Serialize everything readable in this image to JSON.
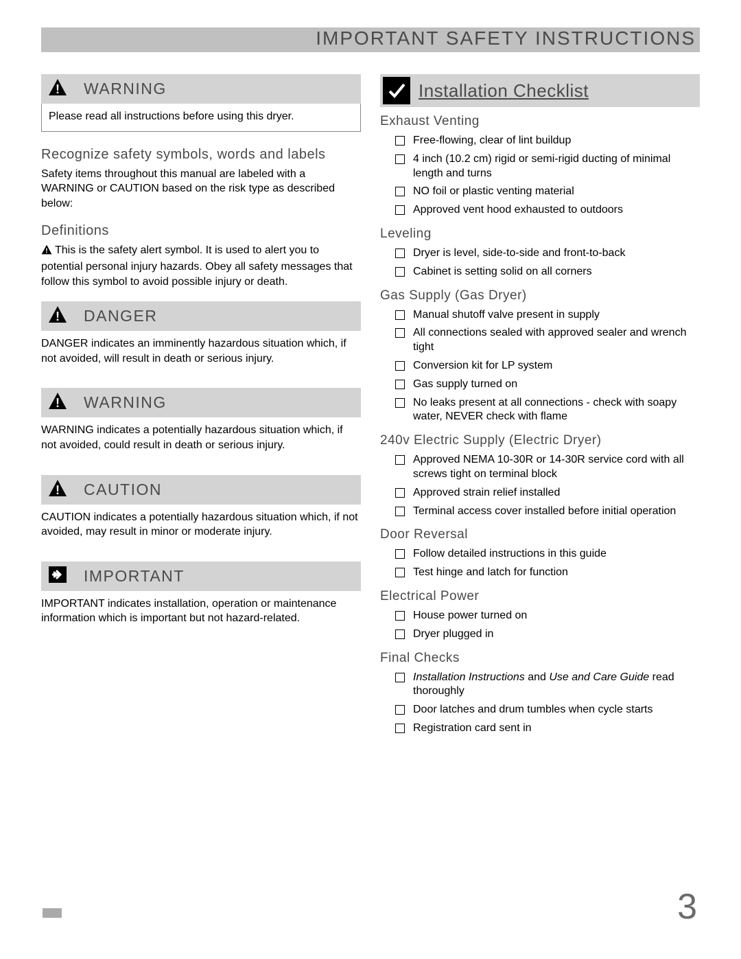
{
  "page_title": "IMPORTANT SAFETY INSTRUCTIONS",
  "page_number": "3",
  "colors": {
    "band": "#c0c0c0",
    "alert_bg": "#d3d3d3",
    "heading_text": "#4a4a4a",
    "body_text": "#000000",
    "icon_black": "#000000",
    "icon_white": "#ffffff"
  },
  "left": {
    "alerts": [
      {
        "icon": "warning-triangle",
        "title": "WARNING",
        "text": "Please read all instructions before using this dryer.",
        "boxed": true
      }
    ],
    "recognize_heading": "Recognize safety symbols, words and labels",
    "recognize_text": "Safety items throughout this manual are labeled with a WARNING or CAUTION based on the risk type as described below:",
    "definitions_heading": "Definitions",
    "definitions_text": "This is the safety alert symbol. It is used to alert you to potential personal injury hazards. Obey all safety messages that follow this symbol to avoid possible injury or death.",
    "alert_blocks": [
      {
        "icon": "warning-triangle",
        "title": "DANGER",
        "text": "DANGER indicates an imminently hazardous situation which, if not avoided, will result in death or serious injury."
      },
      {
        "icon": "warning-triangle",
        "title": "WARNING",
        "text": "WARNING indicates a potentially hazardous situation which, if not avoided, could result in death or serious injury."
      },
      {
        "icon": "warning-triangle",
        "title": "CAUTION",
        "text": "CAUTION indicates a potentially hazardous situation which, if not avoided, may result in minor or moderate injury."
      },
      {
        "icon": "arrow-right",
        "title": "IMPORTANT",
        "text": "IMPORTANT indicates installation, operation or maintenance information which is important but not hazard-related."
      }
    ]
  },
  "right": {
    "checklist_title": "Installation Checklist",
    "sections": [
      {
        "heading": "Exhaust Venting",
        "items": [
          "Free-flowing, clear of lint buildup",
          "4 inch (10.2 cm) rigid or semi-rigid ducting of minimal length and turns",
          "NO foil or plastic venting material",
          "Approved vent hood exhausted to outdoors"
        ]
      },
      {
        "heading": "Leveling",
        "items": [
          "Dryer is level, side-to-side and front-to-back",
          "Cabinet is setting solid on all corners"
        ]
      },
      {
        "heading": "Gas Supply (Gas Dryer)",
        "items": [
          "Manual shutoff valve present in supply",
          "All connections sealed with approved sealer and wrench tight",
          "Conversion kit for LP system",
          "Gas supply turned on",
          "No leaks present at all connections - check with soapy water, NEVER check with flame"
        ]
      },
      {
        "heading": "240v Electric Supply (Electric Dryer)",
        "items": [
          "Approved NEMA 10-30R or 14-30R service cord with all screws tight on terminal block",
          "Approved strain relief installed",
          "Terminal access cover installed before initial operation"
        ]
      },
      {
        "heading": "Door Reversal",
        "items": [
          "Follow detailed instructions in this guide",
          "Test hinge and latch for function"
        ]
      },
      {
        "heading": "Electrical Power",
        "items": [
          "House power turned on",
          "Dryer plugged in"
        ]
      }
    ],
    "final_checks": {
      "heading": "Final Checks",
      "item1_pre": "Installation Instructions",
      "item1_mid": " and ",
      "item1_post": "Use and Care Guide",
      "item1_end": " read thoroughly",
      "item2": "Door latches and drum tumbles when cycle starts",
      "item3": "Registration card sent in"
    }
  }
}
